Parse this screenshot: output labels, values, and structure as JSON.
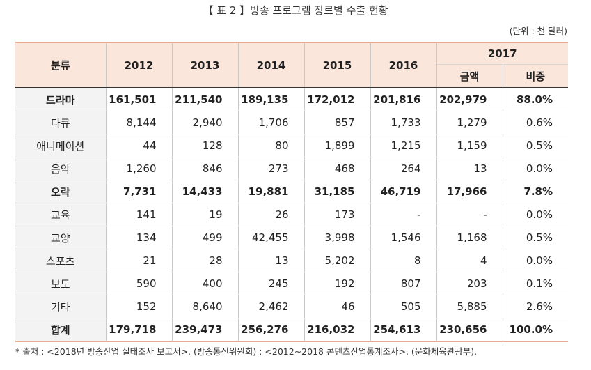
{
  "title": "【 표 2 】방송 프로그램 장르별 수출 현황",
  "unit": "(단위 : 천 달러)",
  "header": {
    "category": "분류",
    "years": [
      "2012",
      "2013",
      "2014",
      "2015",
      "2016"
    ],
    "year_2017": "2017",
    "amount": "금액",
    "share": "비중"
  },
  "rows": [
    {
      "cat": "드라마",
      "v": [
        "161,501",
        "211,540",
        "189,135",
        "172,012",
        "201,816",
        "202,979",
        "88.0%"
      ],
      "bold": true
    },
    {
      "cat": "다큐",
      "v": [
        "8,144",
        "2,940",
        "1,706",
        "857",
        "1,733",
        "1,279",
        "0.6%"
      ],
      "bold": false
    },
    {
      "cat": "애니메이션",
      "v": [
        "44",
        "128",
        "80",
        "1,899",
        "1,215",
        "1,159",
        "0.5%"
      ],
      "bold": false
    },
    {
      "cat": "음악",
      "v": [
        "1,260",
        "846",
        "273",
        "468",
        "264",
        "13",
        "0.0%"
      ],
      "bold": false
    },
    {
      "cat": "오락",
      "v": [
        "7,731",
        "14,433",
        "19,881",
        "31,185",
        "46,719",
        "17,966",
        "7.8%"
      ],
      "bold": true
    },
    {
      "cat": "교육",
      "v": [
        "141",
        "19",
        "26",
        "173",
        "-",
        "-",
        "0.0%"
      ],
      "bold": false
    },
    {
      "cat": "교양",
      "v": [
        "134",
        "499",
        "42,455",
        "3,998",
        "1,546",
        "1,168",
        "0.5%"
      ],
      "bold": false
    },
    {
      "cat": "스포츠",
      "v": [
        "21",
        "28",
        "13",
        "5,202",
        "8",
        "4",
        "0.0%"
      ],
      "bold": false
    },
    {
      "cat": "보도",
      "v": [
        "590",
        "400",
        "245",
        "192",
        "807",
        "203",
        "0.1%"
      ],
      "bold": false
    },
    {
      "cat": "기타",
      "v": [
        "152",
        "8,640",
        "2,462",
        "46",
        "505",
        "5,885",
        "2.6%"
      ],
      "bold": false
    },
    {
      "cat": "합계",
      "v": [
        "179,718",
        "239,473",
        "256,276",
        "216,032",
        "254,613",
        "230,656",
        "100.0%"
      ],
      "bold": true,
      "total": true
    }
  ],
  "note": "* 출처 : <2018년 방송산업 실태조사 보고서>, (방송통신위원회) ; <2012~2018 콘텐츠산업통계조사>, (문화체육관광부)."
}
